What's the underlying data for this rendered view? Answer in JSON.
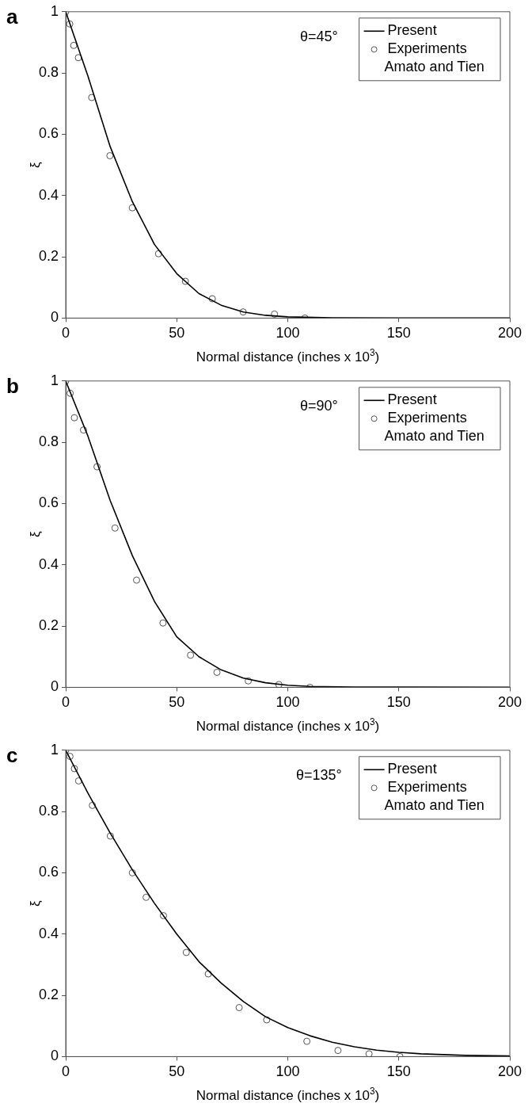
{
  "chart_data": [
    {
      "type": "line",
      "title": "a",
      "ylabel": "ξ",
      "xlabel": "Normal distance (inches x 10$^{3}$)",
      "annotations": [
        "θ=45°"
      ],
      "xlim": [
        0,
        200
      ],
      "xticks": [
        0,
        50,
        100,
        150,
        200
      ],
      "ylim": [
        0,
        1
      ],
      "yticks": [
        0,
        0.2,
        0.4,
        0.6,
        0.8,
        1
      ],
      "legend": "top right",
      "grid": false,
      "series": [
        {
          "name": "Present",
          "type": "line",
          "color": "#000000",
          "marker": "none",
          "line_style": "solid",
          "x": [
            0,
            10,
            20,
            30,
            40,
            50,
            60,
            70,
            80,
            90,
            100,
            120,
            150,
            200
          ],
          "values": [
            1,
            0.79,
            0.56,
            0.38,
            0.24,
            0.145,
            0.08,
            0.042,
            0.02,
            0.009,
            0.004,
            0.001,
            0,
            0
          ]
        },
        {
          "name": "Experiments\nAmato and Tien",
          "type": "scatter",
          "color": "#555555",
          "marker": "circle",
          "x": [
            0,
            1.8,
            3.6,
            5.7,
            11.7,
            19.9,
            30,
            41.8,
            53.9,
            66,
            79.9,
            94,
            107.7
          ],
          "values": [
            1,
            0.96,
            0.89,
            0.85,
            0.72,
            0.53,
            0.36,
            0.21,
            0.12,
            0.063,
            0.02,
            0.013,
            0
          ]
        }
      ]
    },
    {
      "type": "line",
      "title": "b",
      "ylabel": "ξ",
      "xlabel": "Normal distance (inches x 10$^{3}$)",
      "annotations": [
        "θ=90°"
      ],
      "xlim": [
        0,
        200
      ],
      "xticks": [
        0,
        50,
        100,
        150,
        200
      ],
      "ylim": [
        0,
        1
      ],
      "yticks": [
        0,
        0.2,
        0.4,
        0.6,
        0.8,
        1
      ],
      "legend": "top right",
      "grid": false,
      "series": [
        {
          "name": "Present",
          "type": "line",
          "color": "#000000",
          "marker": "none",
          "line_style": "solid",
          "x": [
            0,
            10,
            20,
            30,
            40,
            50,
            60,
            70,
            80,
            90,
            100,
            110,
            130,
            200
          ],
          "values": [
            1,
            0.82,
            0.61,
            0.43,
            0.28,
            0.165,
            0.1,
            0.057,
            0.03,
            0.015,
            0.007,
            0.003,
            0.001,
            0
          ]
        },
        {
          "name": "Experiments\nAmato and Tien",
          "type": "scatter",
          "color": "#555555",
          "marker": "circle",
          "x": [
            0,
            2,
            3.9,
            8,
            14.1,
            22.2,
            31.9,
            43.8,
            56.2,
            68.1,
            82.2,
            96,
            110
          ],
          "values": [
            1,
            0.96,
            0.88,
            0.84,
            0.72,
            0.52,
            0.35,
            0.21,
            0.105,
            0.049,
            0.021,
            0.009,
            0
          ]
        }
      ]
    },
    {
      "type": "line",
      "title": "c",
      "ylabel": "ξ",
      "xlabel": "Normal distance (inches x 10$^{3}$)",
      "annotations": [
        "θ=135°"
      ],
      "xlim": [
        0,
        200
      ],
      "xticks": [
        0,
        50,
        100,
        150,
        200
      ],
      "ylim": [
        0,
        1
      ],
      "yticks": [
        0,
        0.2,
        0.4,
        0.6,
        0.8,
        1
      ],
      "legend": "top right",
      "grid": false,
      "series": [
        {
          "name": "Present",
          "type": "line",
          "color": "#000000",
          "marker": "none",
          "line_style": "solid",
          "x": [
            0,
            10,
            20,
            30,
            40,
            50,
            60,
            70,
            80,
            90,
            100,
            110,
            120,
            130,
            140,
            150,
            160,
            180,
            200
          ],
          "values": [
            1,
            0.86,
            0.73,
            0.61,
            0.5,
            0.4,
            0.31,
            0.24,
            0.18,
            0.13,
            0.095,
            0.068,
            0.047,
            0.032,
            0.021,
            0.014,
            0.009,
            0.004,
            0.002
          ]
        },
        {
          "name": "Experiments\nAmato and Tien",
          "type": "scatter",
          "color": "#555555",
          "marker": "circle",
          "x": [
            0,
            1.9,
            3.9,
            5.8,
            12,
            20.1,
            30,
            36.2,
            44,
            54.3,
            64.2,
            78.1,
            90.5,
            108.6,
            122.6,
            136.6,
            150.5
          ],
          "values": [
            1,
            0.98,
            0.94,
            0.9,
            0.82,
            0.72,
            0.6,
            0.52,
            0.46,
            0.34,
            0.27,
            0.16,
            0.12,
            0.05,
            0.02,
            0.009,
            0
          ]
        }
      ]
    }
  ]
}
